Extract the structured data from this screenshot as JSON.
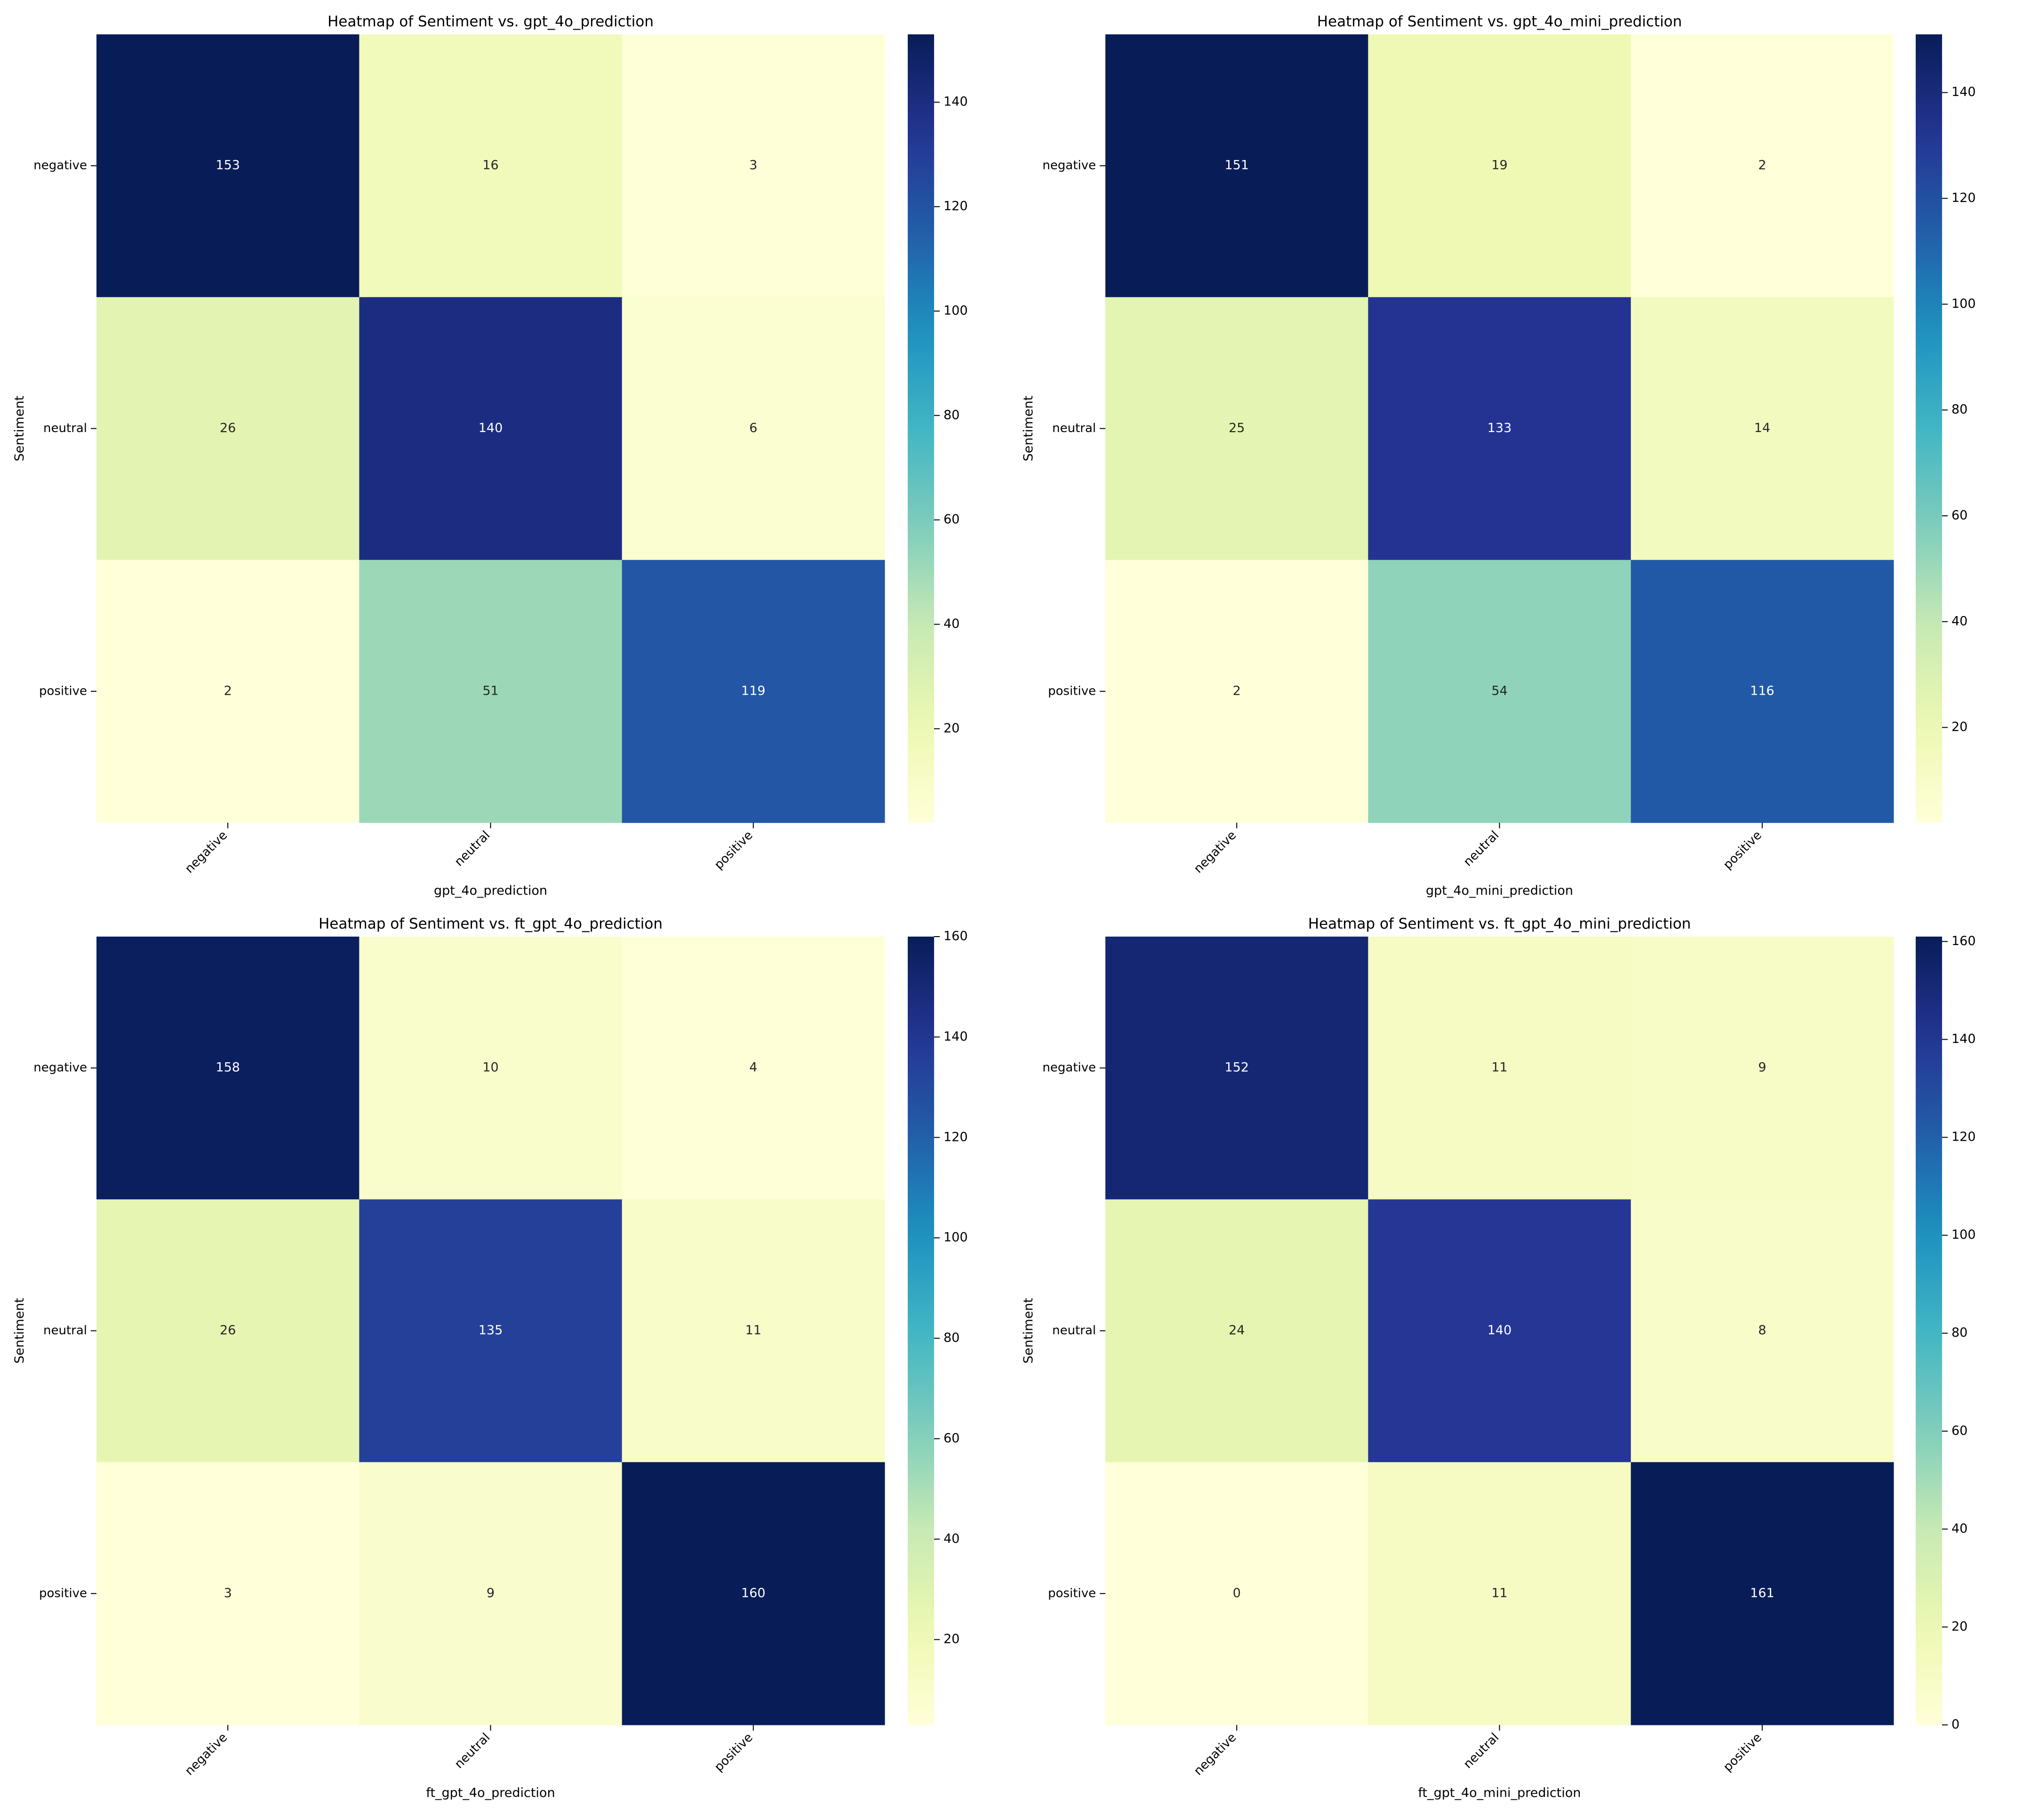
{
  "chart_data": [
    {
      "type": "heatmap",
      "title": "Heatmap of Sentiment vs. gpt_4o_prediction",
      "xlabel": "gpt_4o_prediction",
      "ylabel": "Sentiment",
      "x_categories": [
        "negative",
        "neutral",
        "positive"
      ],
      "y_categories": [
        "negative",
        "neutral",
        "positive"
      ],
      "values": [
        [
          153,
          16,
          3
        ],
        [
          26,
          140,
          6
        ],
        [
          2,
          51,
          119
        ]
      ],
      "colormap": "YlGnBu",
      "colorbar": {
        "min": 2,
        "max": 153,
        "ticks": [
          20,
          40,
          60,
          80,
          100,
          120,
          140
        ]
      }
    },
    {
      "type": "heatmap",
      "title": "Heatmap of Sentiment vs. gpt_4o_mini_prediction",
      "xlabel": "gpt_4o_mini_prediction",
      "ylabel": "Sentiment",
      "x_categories": [
        "negative",
        "neutral",
        "positive"
      ],
      "y_categories": [
        "negative",
        "neutral",
        "positive"
      ],
      "values": [
        [
          151,
          19,
          2
        ],
        [
          25,
          133,
          14
        ],
        [
          2,
          54,
          116
        ]
      ],
      "colormap": "YlGnBu",
      "colorbar": {
        "min": 2,
        "max": 151,
        "ticks": [
          20,
          40,
          60,
          80,
          100,
          120,
          140
        ]
      }
    },
    {
      "type": "heatmap",
      "title": "Heatmap of Sentiment vs. ft_gpt_4o_prediction",
      "xlabel": "ft_gpt_4o_prediction",
      "ylabel": "Sentiment",
      "x_categories": [
        "negative",
        "neutral",
        "positive"
      ],
      "y_categories": [
        "negative",
        "neutral",
        "positive"
      ],
      "values": [
        [
          158,
          10,
          4
        ],
        [
          26,
          135,
          11
        ],
        [
          3,
          9,
          160
        ]
      ],
      "colormap": "YlGnBu",
      "colorbar": {
        "min": 3,
        "max": 160,
        "ticks": [
          20,
          40,
          60,
          80,
          100,
          120,
          140,
          160
        ]
      }
    },
    {
      "type": "heatmap",
      "title": "Heatmap of Sentiment vs. ft_gpt_4o_mini_prediction",
      "xlabel": "ft_gpt_4o_mini_prediction",
      "ylabel": "Sentiment",
      "x_categories": [
        "negative",
        "neutral",
        "positive"
      ],
      "y_categories": [
        "negative",
        "neutral",
        "positive"
      ],
      "values": [
        [
          152,
          11,
          9
        ],
        [
          24,
          140,
          8
        ],
        [
          0,
          11,
          161
        ]
      ],
      "colormap": "YlGnBu",
      "colorbar": {
        "min": 0,
        "max": 161,
        "ticks": [
          0,
          20,
          40,
          60,
          80,
          100,
          120,
          140,
          160
        ]
      }
    }
  ]
}
